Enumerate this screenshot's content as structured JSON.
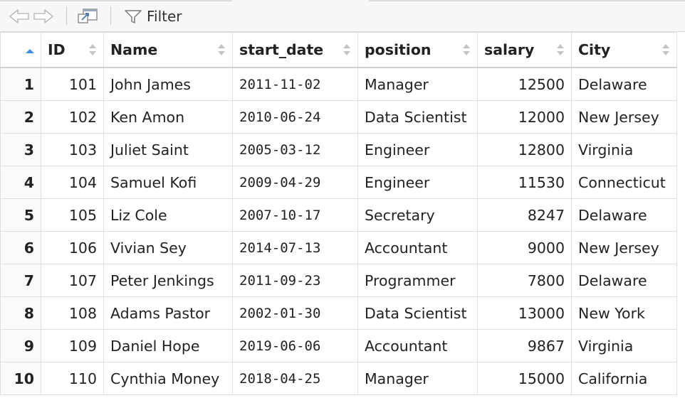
{
  "toolbar": {
    "filter_label": "Filter",
    "icons": [
      "back-arrow-icon",
      "forward-arrow-icon",
      "popout-icon",
      "filter-icon"
    ]
  },
  "table": {
    "columns": [
      "ID",
      "Name",
      "start_date",
      "position",
      "salary",
      "City"
    ],
    "rows": [
      {
        "n": "1",
        "id": "101",
        "name": "John James",
        "start_date": "2011-11-02",
        "position": "Manager",
        "salary": "12500",
        "city": "Delaware"
      },
      {
        "n": "2",
        "id": "102",
        "name": "Ken Amon",
        "start_date": "2010-06-24",
        "position": "Data Scientist",
        "salary": "12000",
        "city": "New Jersey"
      },
      {
        "n": "3",
        "id": "103",
        "name": "Juliet Saint",
        "start_date": "2005-03-12",
        "position": "Engineer",
        "salary": "12800",
        "city": "Virginia"
      },
      {
        "n": "4",
        "id": "104",
        "name": "Samuel Kofi",
        "start_date": "2009-04-29",
        "position": "Engineer",
        "salary": "11530",
        "city": "Connecticut"
      },
      {
        "n": "5",
        "id": "105",
        "name": "Liz Cole",
        "start_date": "2007-10-17",
        "position": "Secretary",
        "salary": "8247",
        "city": "Delaware"
      },
      {
        "n": "6",
        "id": "106",
        "name": "Vivian Sey",
        "start_date": "2014-07-13",
        "position": "Accountant",
        "salary": "9000",
        "city": "New Jersey"
      },
      {
        "n": "7",
        "id": "107",
        "name": "Peter Jenkings",
        "start_date": "2011-09-23",
        "position": "Programmer",
        "salary": "7800",
        "city": "Delaware"
      },
      {
        "n": "8",
        "id": "108",
        "name": "Adams Pastor",
        "start_date": "2002-01-30",
        "position": "Data Scientist",
        "salary": "13000",
        "city": "New York"
      },
      {
        "n": "9",
        "id": "109",
        "name": "Daniel Hope",
        "start_date": "2019-06-06",
        "position": "Accountant",
        "salary": "9867",
        "city": "Virginia"
      },
      {
        "n": "10",
        "id": "110",
        "name": "Cynthia Money",
        "start_date": "2018-04-25",
        "position": "Manager",
        "salary": "15000",
        "city": "California"
      }
    ]
  },
  "colors": {
    "accent_sort": "#3b8ee8",
    "sort_inactive": "#c4c4c4",
    "toolbar_bg": "#f7f7f7",
    "grid": "#dedede"
  }
}
